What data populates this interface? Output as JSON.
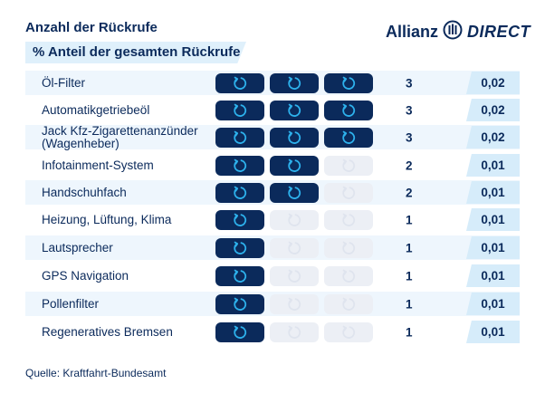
{
  "header": {
    "title": "Anzahl der Rückrufe",
    "subtitle": "% Anteil der gesamten Rückrufe"
  },
  "logo": {
    "brand": "Allianz",
    "product": "DIRECT",
    "icon": "allianz-eagle-icon"
  },
  "source": "Quelle: Kraftfahrt-Bundesamt",
  "colors": {
    "navy": "#0b2a5b",
    "accent": "#2db1ec",
    "row_shade": "#eef6fd",
    "share_bg": "#d6ecfa",
    "pill_off": "#eceff5"
  },
  "chart_data": {
    "type": "table",
    "title": "Anzahl der Rückrufe",
    "subtitle": "% Anteil der gesamten Rückrufe",
    "max_icons": 3,
    "icon": "recall-refresh-icon",
    "rows": [
      {
        "label": "Öl-Filter",
        "count": 3,
        "share": "0,02"
      },
      {
        "label": "Automatikgetriebeöl",
        "count": 3,
        "share": "0,02"
      },
      {
        "label": "Jack Kfz-Zigarettenanzünder\n(Wagenheber)",
        "count": 3,
        "share": "0,02"
      },
      {
        "label": "Infotainment-System",
        "count": 2,
        "share": "0,01"
      },
      {
        "label": "Handschuhfach",
        "count": 2,
        "share": "0,01"
      },
      {
        "label": "Heizung, Lüftung, Klima",
        "count": 1,
        "share": "0,01"
      },
      {
        "label": "Lautsprecher",
        "count": 1,
        "share": "0,01"
      },
      {
        "label": "GPS Navigation",
        "count": 1,
        "share": "0,01"
      },
      {
        "label": "Pollenfilter",
        "count": 1,
        "share": "0,01"
      },
      {
        "label": "Regeneratives Bremsen",
        "count": 1,
        "share": "0,01"
      }
    ]
  }
}
